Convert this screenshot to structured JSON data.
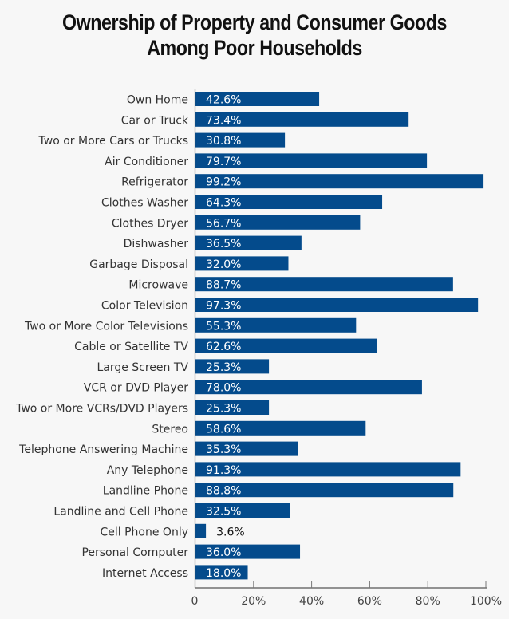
{
  "chart_data": {
    "type": "bar",
    "orientation": "horizontal",
    "title_line1": "Ownership of Property and Consumer Goods",
    "title_line2": "Among Poor Households",
    "categories": [
      "Own Home",
      "Car or Truck",
      "Two or More Cars or Trucks",
      "Air Conditioner",
      "Refrigerator",
      "Clothes Washer",
      "Clothes Dryer",
      "Dishwasher",
      "Garbage Disposal",
      "Microwave",
      "Color Television",
      "Two or More Color Televisions",
      "Cable or Satellite TV",
      "Large Screen TV",
      "VCR or DVD Player",
      "Two or More VCRs/DVD Players",
      "Stereo",
      "Telephone Answering Machine",
      "Any Telephone",
      "Landline Phone",
      "Landline and Cell Phone",
      "Cell Phone Only",
      "Personal Computer",
      "Internet Access"
    ],
    "values": [
      42.6,
      73.4,
      30.8,
      79.7,
      99.2,
      64.3,
      56.7,
      36.5,
      32.0,
      88.7,
      97.3,
      55.3,
      62.6,
      25.3,
      78.0,
      25.3,
      58.6,
      35.3,
      91.3,
      88.8,
      32.5,
      3.6,
      36.0,
      18.0
    ],
    "labels": [
      "42.6%",
      "73.4%",
      "30.8%",
      "79.7%",
      "99.2%",
      "64.3%",
      "56.7%",
      "36.5%",
      "32.0%",
      "88.7%",
      "97.3%",
      "55.3%",
      "62.6%",
      "25.3%",
      "78.0%",
      "25.3%",
      "58.6%",
      "35.3%",
      "91.3%",
      "88.8%",
      "32.5%",
      "3.6%",
      "36.0%",
      "18.0%"
    ],
    "xlim": [
      0,
      100
    ],
    "xticks": [
      0,
      20,
      40,
      60,
      80,
      100
    ],
    "xtick_labels": [
      "0",
      "20%",
      "40%",
      "60%",
      "80%",
      "100%"
    ],
    "xlabel": "",
    "ylabel": "",
    "grid": false,
    "legend": "none",
    "bar_color": "#044b8c",
    "label_color_inside": "#ffffff",
    "label_color_outside": "#111111"
  }
}
